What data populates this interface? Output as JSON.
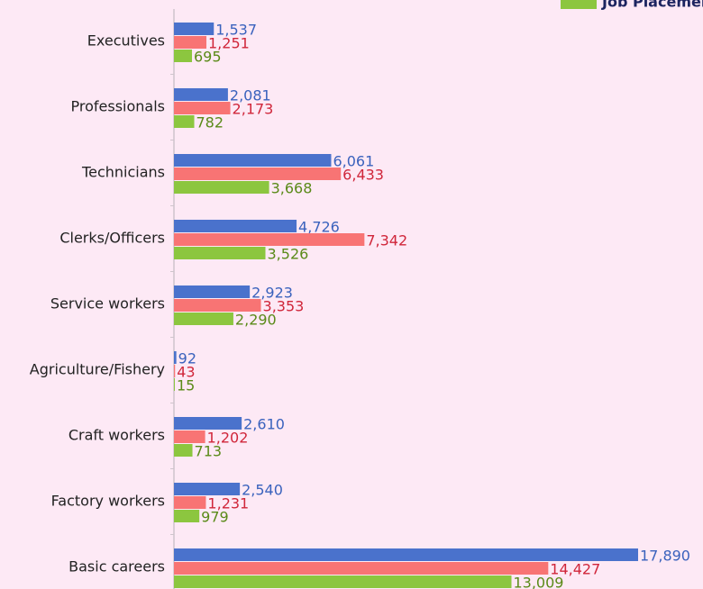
{
  "chart_data": {
    "type": "bar",
    "orientation": "horizontal",
    "categories": [
      "Executives",
      "Professionals",
      "Technicians",
      "Clerks/Officers",
      "Service workers",
      "Agriculture/Fishery",
      "Craft workers",
      "Factory workers",
      "Basic careers"
    ],
    "series": [
      {
        "color": "#4a72cc",
        "label_color": "#3a62bd",
        "values": [
          1537,
          2081,
          6061,
          4726,
          2923,
          92,
          2610,
          2540,
          17890
        ],
        "value_labels": [
          "1,537",
          "2,081",
          "6,061",
          "4,726",
          "2,923",
          "92",
          "2,610",
          "2,540",
          "17,890"
        ]
      },
      {
        "color": "#f87474",
        "label_color": "#d0263a",
        "values": [
          1251,
          2173,
          6433,
          7342,
          3353,
          43,
          1202,
          1231,
          14427
        ],
        "value_labels": [
          "1,251",
          "2,173",
          "6,433",
          "7,342",
          "3,353",
          "43",
          "1,202",
          "1,231",
          "14,427"
        ]
      },
      {
        "name": "Job Placement",
        "color": "#8cc63f",
        "label_color": "#5a8a18",
        "values": [
          695,
          782,
          3668,
          3526,
          2290,
          15,
          713,
          979,
          13009
        ],
        "value_labels": [
          "695",
          "782",
          "3,668",
          "3,526",
          "2,290",
          "15",
          "713",
          "979",
          "13,009"
        ]
      }
    ],
    "legend": "top-right"
  }
}
